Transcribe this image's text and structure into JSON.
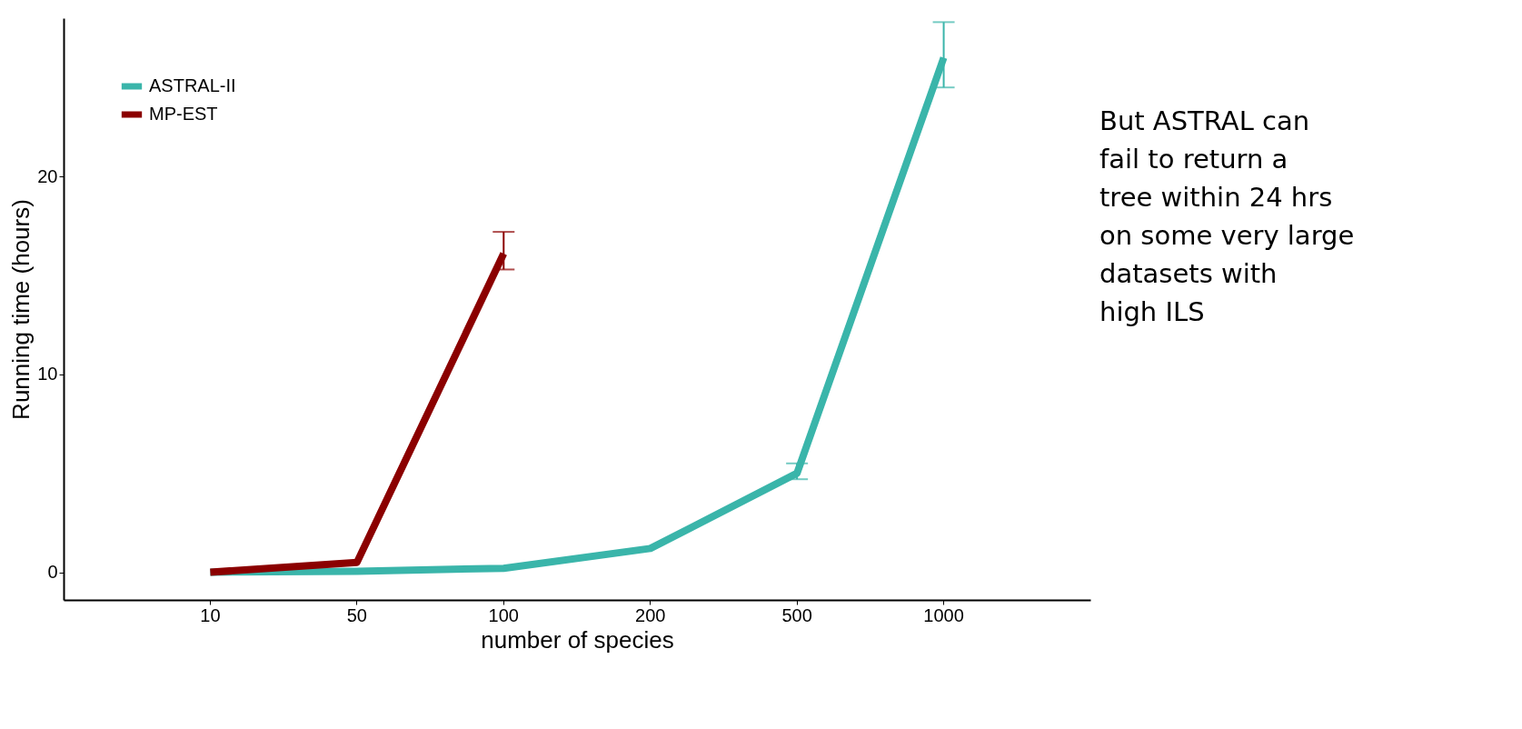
{
  "chart_data": {
    "type": "line",
    "xlabel": "number of species",
    "ylabel": "Running time (hours)",
    "categories": [
      "10",
      "50",
      "100",
      "200",
      "500",
      "1000"
    ],
    "series": [
      {
        "name": "ASTRAL-II",
        "color": "#3ab5aa",
        "values": [
          0,
          0.05,
          0.2,
          1.2,
          5.0,
          26.0
        ],
        "errors": [
          null,
          null,
          null,
          null,
          [
            4.7,
            5.5
          ],
          [
            24.5,
            27.8
          ]
        ]
      },
      {
        "name": "MP-EST",
        "color": "#8b0000",
        "values": [
          0,
          0.5,
          16.1,
          null,
          null,
          null
        ],
        "errors": [
          null,
          null,
          [
            15.3,
            17.2
          ],
          null,
          null,
          null
        ]
      }
    ],
    "ylim": [
      -1.4,
      28
    ],
    "yticks": [
      0,
      10,
      20
    ],
    "grid": false,
    "legend": "top left",
    "marker": "none",
    "line_style": "solid",
    "annotations": [
      "But ASTRAL can\nfail to return a\ntree within 24 hrs\non some very large\ndatasets with\nhigh ILS"
    ]
  }
}
